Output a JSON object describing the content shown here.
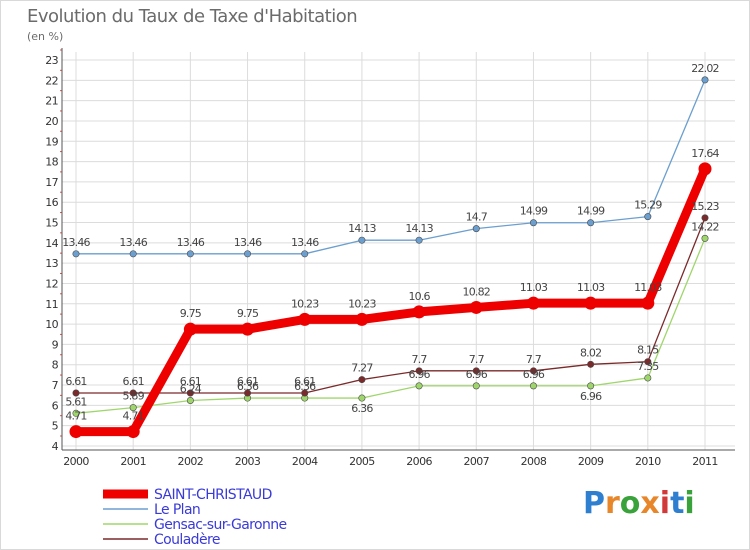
{
  "header": {
    "title": "Evolution du Taux de Taxe d'Habitation",
    "unit": "(en %)"
  },
  "logo": {
    "text": "Proxiti",
    "letters": [
      "P",
      "r",
      "o",
      "x",
      "i",
      "t",
      "i"
    ],
    "colors": [
      "#2f7fd0",
      "#e8862a",
      "#3aa23a",
      "#e8862a",
      "#d23a3a",
      "#2f7fd0",
      "#3aa23a"
    ]
  },
  "chart_data": {
    "type": "line",
    "title": "Evolution du Taux de Taxe d'Habitation",
    "ylabel": "(en %)",
    "xlabel": "",
    "ylim": [
      4,
      23
    ],
    "yticks": [
      4,
      5,
      6,
      7,
      8,
      9,
      10,
      11,
      12,
      13,
      14,
      15,
      16,
      17,
      18,
      19,
      20,
      21,
      22,
      23
    ],
    "x": [
      "2000",
      "2001",
      "2002",
      "2003",
      "2004",
      "2005",
      "2006",
      "2007",
      "2008",
      "2009",
      "2010",
      "2011"
    ],
    "series": [
      {
        "name": "SAINT-CHRISTAUD",
        "color": "#ee0000",
        "thick": true,
        "values": [
          4.71,
          4.71,
          9.75,
          9.75,
          10.23,
          10.23,
          10.6,
          10.82,
          11.03,
          11.03,
          11.03,
          17.64
        ],
        "labels": [
          "4.71",
          "4.71",
          "9.75",
          "9.75",
          "10.23",
          "10.23",
          "10.6",
          "10.82",
          "11.03",
          "11.03",
          "11.03",
          "17.64"
        ],
        "label_pos": [
          "above",
          "above",
          "above",
          "above",
          "above",
          "above",
          "above",
          "above",
          "above",
          "above",
          "above",
          "above"
        ]
      },
      {
        "name": "Le Plan",
        "color": "#6b9fcf",
        "thick": false,
        "values": [
          13.46,
          13.46,
          13.46,
          13.46,
          13.46,
          14.13,
          14.13,
          14.7,
          14.99,
          14.99,
          15.29,
          22.02
        ],
        "labels": [
          "13.46",
          "13.46",
          "13.46",
          "13.46",
          "13.46",
          "14.13",
          "14.13",
          "14.7",
          "14.99",
          "14.99",
          "15.29",
          "22.02"
        ],
        "label_pos": [
          "above",
          "above",
          "above",
          "above",
          "above",
          "above",
          "above",
          "above",
          "above",
          "above",
          "above",
          "above"
        ]
      },
      {
        "name": "Gensac-sur-Garonne",
        "color": "#9fd66b",
        "thick": false,
        "values": [
          5.61,
          5.89,
          6.24,
          6.36,
          6.36,
          6.36,
          6.96,
          6.96,
          6.96,
          6.96,
          7.35,
          14.22
        ],
        "labels": [
          "5.61",
          "5.89",
          "6.24",
          "6.36",
          "6.36",
          "6.36",
          "6.96",
          "6.96",
          "6.96",
          "6.96",
          "7.35",
          "14.22"
        ],
        "label_pos": [
          "above",
          "above",
          "above",
          "above",
          "above",
          "below",
          "above",
          "above",
          "above",
          "below",
          "above",
          "above"
        ]
      },
      {
        "name": "Couladère",
        "color": "#7a2a2a",
        "thick": false,
        "values": [
          6.61,
          6.61,
          6.61,
          6.61,
          6.61,
          7.27,
          7.7,
          7.7,
          7.7,
          8.02,
          8.15,
          15.23
        ],
        "labels": [
          "6.61",
          "6.61",
          "6.61",
          "6.61",
          "6.61",
          "7.27",
          "7.7",
          "7.7",
          "7.7",
          "8.02",
          "8.15",
          "15.23"
        ],
        "label_pos": [
          "above",
          "above",
          "above",
          "above",
          "above",
          "above",
          "above",
          "above",
          "above",
          "above",
          "above",
          "above"
        ]
      }
    ],
    "legend": [
      "SAINT-CHRISTAUD",
      "Le Plan",
      "Gensac-sur-Garonne",
      "Couladère"
    ]
  }
}
